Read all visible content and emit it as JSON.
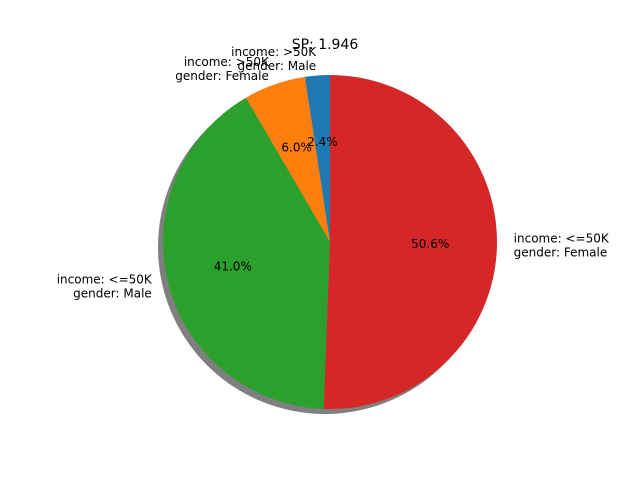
{
  "chart_data": {
    "type": "pie",
    "title": "SP: 1.946",
    "shadow": true,
    "start_angle_deg": 90,
    "direction": "counterclockwise",
    "slices": [
      {
        "label_lines": [
          "income: >50K",
          "gender: Male"
        ],
        "value": 2.4,
        "pct_text": "2.4%",
        "color": "#1f77b4"
      },
      {
        "label_lines": [
          "income: >50K",
          "gender: Female"
        ],
        "value": 6.0,
        "pct_text": "6.0%",
        "color": "#ff7f0e"
      },
      {
        "label_lines": [
          "income: <=50K",
          "gender: Male"
        ],
        "value": 41.0,
        "pct_text": "41.0%",
        "color": "#2ca02c"
      },
      {
        "label_lines": [
          "income: <=50K",
          "gender: Female"
        ],
        "value": 50.6,
        "pct_text": "50.6%",
        "color": "#d62728"
      }
    ]
  }
}
